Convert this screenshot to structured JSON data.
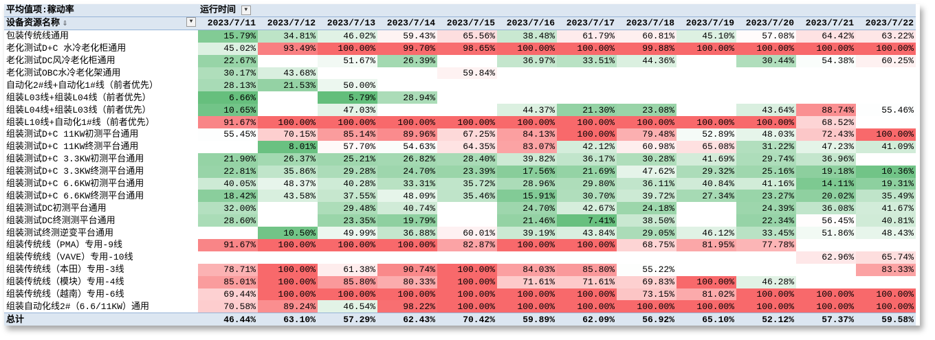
{
  "pivot": {
    "value_field_label": "平均值项:稼动率",
    "column_field_label": "运行时间",
    "row_field_label": "设备资源名称",
    "total_label": "总计",
    "icons": {
      "filter_dropdown": "chevron-down-icon",
      "cursor": "down-arrow-cursor-icon"
    },
    "color_scale": {
      "low": "#63BE7B",
      "mid": "#FFFFFF",
      "high": "#F8696B"
    },
    "dates": [
      "2023/7/11",
      "2023/7/12",
      "2023/7/13",
      "2023/7/14",
      "2023/7/15",
      "2023/7/16",
      "2023/7/17",
      "2023/7/18",
      "2023/7/19",
      "2023/7/20",
      "2023/7/21",
      "2023/7/22"
    ],
    "rows": [
      {
        "name": "包装传统线通用",
        "values": [
          "15.79%",
          "34.81%",
          "46.02%",
          "59.43%",
          "65.56%",
          "38.48%",
          "61.79%",
          "60.81%",
          "45.10%",
          "57.08%",
          "64.42%",
          "63.22%"
        ]
      },
      {
        "name": "老化测试D+C 水冷老化柜通用",
        "values": [
          "45.02%",
          "93.49%",
          "100.00%",
          "99.70%",
          "98.65%",
          "100.00%",
          "100.00%",
          "99.88%",
          "100.00%",
          "100.00%",
          "100.00%",
          "100.00%"
        ]
      },
      {
        "name": "老化测试DC风冷老化柜通用",
        "values": [
          "22.67%",
          "",
          "51.67%",
          "26.39%",
          "",
          "36.97%",
          "33.51%",
          "44.36%",
          "",
          "30.44%",
          "54.38%",
          "60.25%"
        ]
      },
      {
        "name": "老化测试OBC水冷老化架通用",
        "values": [
          "30.17%",
          "43.68%",
          "",
          "",
          "59.84%",
          "",
          "",
          "",
          "",
          "",
          "",
          ""
        ]
      },
      {
        "name": "自动化2#线+自动化1#线（前者优先）",
        "values": [
          "28.13%",
          "21.53%",
          "50.00%",
          "",
          "",
          "",
          "",
          "",
          "",
          "",
          "",
          ""
        ]
      },
      {
        "name": "组装L03线+组装L04线（前者优先）",
        "values": [
          "6.66%",
          "",
          "5.79%",
          "28.94%",
          "",
          "",
          "",
          "",
          "",
          "",
          "",
          ""
        ]
      },
      {
        "name": "组装L04线+组装L03线（前者优先）",
        "values": [
          "10.65%",
          "",
          "47.03%",
          "",
          "",
          "44.37%",
          "21.30%",
          "23.08%",
          "",
          "43.64%",
          "88.74%",
          "55.46%"
        ]
      },
      {
        "name": "组装L10线+自动化1#线（前者优先）",
        "values": [
          "91.67%",
          "100.00%",
          "100.00%",
          "100.00%",
          "100.00%",
          "100.00%",
          "100.00%",
          "100.00%",
          "100.00%",
          "100.00%",
          "68.52%",
          ""
        ]
      },
      {
        "name": "组装测试D+C 11KW初测平台通用",
        "values": [
          "55.45%",
          "70.15%",
          "85.14%",
          "89.96%",
          "67.25%",
          "84.13%",
          "100.00%",
          "79.48%",
          "52.89%",
          "48.03%",
          "72.43%",
          "100.00%"
        ]
      },
      {
        "name": "组装测试D+C 11KW终测平台通用",
        "values": [
          "",
          "8.01%",
          "57.70%",
          "54.63%",
          "64.35%",
          "83.07%",
          "42.12%",
          "60.98%",
          "65.08%",
          "31.22%",
          "47.23%",
          "41.09%"
        ]
      },
      {
        "name": "组装测试D+C 3.3KW初测平台通用",
        "values": [
          "21.90%",
          "26.37%",
          "25.21%",
          "26.82%",
          "28.40%",
          "39.82%",
          "36.17%",
          "30.28%",
          "41.69%",
          "29.74%",
          "36.96%",
          ""
        ]
      },
      {
        "name": "组装测试D+C 3.3KW终测平台通用",
        "values": [
          "22.81%",
          "35.86%",
          "29.28%",
          "24.70%",
          "23.39%",
          "17.56%",
          "21.69%",
          "47.62%",
          "29.32%",
          "25.16%",
          "19.18%",
          "10.36%"
        ]
      },
      {
        "name": "组装测试D+C 6.6KW初测平台通用",
        "values": [
          "40.05%",
          "48.37%",
          "40.28%",
          "33.31%",
          "35.72%",
          "28.96%",
          "29.80%",
          "36.11%",
          "40.84%",
          "41.16%",
          "14.11%",
          "19.31%"
        ]
      },
      {
        "name": "组装测试D+C 6.6KW终测平台通用",
        "values": [
          "18.42%",
          "43.58%",
          "37.55%",
          "48.09%",
          "35.46%",
          "15.91%",
          "30.70%",
          "39.72%",
          "27.34%",
          "23.27%",
          "20.02%",
          "35.49%"
        ]
      },
      {
        "name": "组装测试DC初测平台通用",
        "values": [
          "32.00%",
          "",
          "29.48%",
          "40.74%",
          "",
          "24.70%",
          "42.67%",
          "24.18%",
          "",
          "24.39%",
          "36.08%",
          "41.67%"
        ]
      },
      {
        "name": "组装测试DC终测测平台通用",
        "values": [
          "28.60%",
          "",
          "23.35%",
          "19.79%",
          "",
          "21.46%",
          "7.41%",
          "38.50%",
          "",
          "22.34%",
          "56.45%",
          "40.81%"
        ]
      },
      {
        "name": "组装测试终测逆变平台通用",
        "values": [
          "",
          "10.50%",
          "49.99%",
          "36.88%",
          "60.01%",
          "39.19%",
          "43.84%",
          "29.05%",
          "46.12%",
          "33.45%",
          "51.86%",
          "48.43%"
        ]
      },
      {
        "name": "组装传统线（PMA）专用-9线",
        "values": [
          "91.67%",
          "100.00%",
          "100.00%",
          "100.00%",
          "82.87%",
          "100.00%",
          "100.00%",
          "68.75%",
          "81.95%",
          "77.78%",
          "",
          ""
        ]
      },
      {
        "name": "组装传统线（VAVE）专用-10线",
        "values": [
          "",
          "",
          "",
          "",
          "",
          "",
          "",
          "",
          "",
          "",
          "62.96%",
          "65.74%"
        ]
      },
      {
        "name": "组装传统线（本田）专用-3线",
        "values": [
          "78.71%",
          "100.00%",
          "61.38%",
          "90.74%",
          "100.00%",
          "84.03%",
          "85.80%",
          "55.22%",
          "",
          "",
          "",
          "83.33%"
        ]
      },
      {
        "name": "组装传统线（模块）专用-4线",
        "values": [
          "85.01%",
          "100.00%",
          "85.80%",
          "80.33%",
          "100.00%",
          "71.61%",
          "71.61%",
          "69.83%",
          "100.00%",
          "46.28%",
          "",
          ""
        ]
      },
      {
        "name": "组装传统线（越南）专用-6线",
        "values": [
          "69.44%",
          "100.00%",
          "100.00%",
          "100.00%",
          "100.00%",
          "100.00%",
          "100.00%",
          "73.15%",
          "81.02%",
          "100.00%",
          "100.00%",
          "100.00%"
        ]
      },
      {
        "name": "组装自动化线2#（6.6/11KW）通用",
        "values": [
          "70.58%",
          "89.24%",
          "46.54%",
          "98.22%",
          "100.00%",
          "100.00%",
          "100.00%",
          "100.00%",
          "100.00%",
          "100.00%",
          "100.00%",
          "100.00%"
        ]
      }
    ],
    "totals": [
      "46.44%",
      "63.10%",
      "57.29%",
      "62.43%",
      "70.42%",
      "59.89%",
      "62.09%",
      "56.92%",
      "65.10%",
      "52.12%",
      "57.37%",
      "59.58%"
    ]
  }
}
